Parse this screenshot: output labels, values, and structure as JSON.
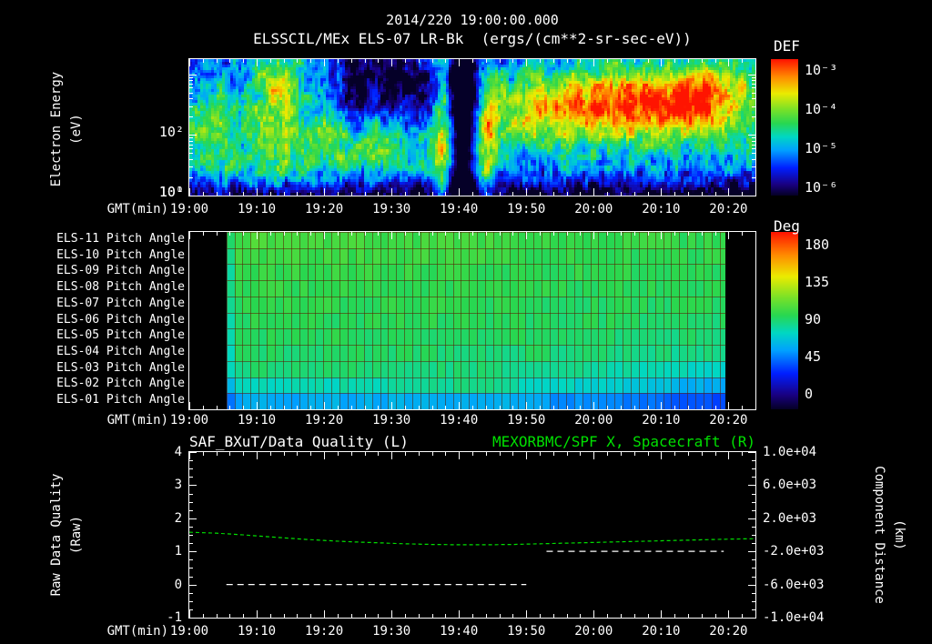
{
  "colors": {
    "background": "#000000",
    "text": "#ffffff",
    "title_green": "#00e000",
    "grid_red": "#5a1e00"
  },
  "header": {
    "timestamp": "2014/220 19:00:00.000"
  },
  "axis": {
    "x_label": "GMT(min)",
    "x_tick_labels": [
      "19:00",
      "19:10",
      "19:20",
      "19:30",
      "19:40",
      "19:50",
      "20:00",
      "20:10",
      "20:20"
    ],
    "x_tick_interval_min": 10,
    "x_range_min": [
      0,
      84
    ]
  },
  "chart_data": [
    {
      "id": "electron_energy_spectrogram",
      "type": "heatmap",
      "title": "ELSSCIL/MEx ELS-07 LR-Bk  (ergs/(cm**2-sr-sec-eV))",
      "ylabel": {
        "line1": "Electron Energy",
        "line2": "(eV)"
      },
      "y_scale": "log",
      "y_ticks": [
        "10²",
        "10¹",
        "10⁰"
      ],
      "y_tick_exponents": [
        2,
        1,
        0
      ],
      "y_range_log10_eV": [
        0,
        2.25
      ],
      "colorbar": {
        "label": "DEF",
        "ticks": [
          "10⁻³",
          "10⁻⁴",
          "10⁻⁵",
          "10⁻⁶"
        ],
        "tick_values_log10": [
          -3,
          -4,
          -5,
          -6
        ]
      },
      "base_log10": -5.5,
      "low_energy_cutoff_log10": 0.45,
      "features": [
        {
          "t": 3,
          "e": 1.1,
          "wt": 3.5,
          "we": 0.55,
          "a": 1.05
        },
        {
          "t": 13,
          "e": 1.2,
          "wt": 3,
          "we": 0.7,
          "a": 1.15
        },
        {
          "t": 13,
          "e": 1.9,
          "wt": 2.5,
          "we": 0.3,
          "a": 0.8
        },
        {
          "t": 22,
          "e": 1.0,
          "wt": 4,
          "we": 0.5,
          "a": 1.0
        },
        {
          "t": 30,
          "e": 0.85,
          "wt": 4,
          "we": 0.4,
          "a": 0.9
        },
        {
          "t": 31,
          "e": 1.75,
          "wt": 6,
          "we": 0.45,
          "a": -1.1
        },
        {
          "t": 24.5,
          "e": 1.6,
          "wt": 1.2,
          "we": 0.5,
          "a": -0.9
        },
        {
          "t": 37.5,
          "e": 1.0,
          "wt": 1.0,
          "we": 1.4,
          "a": 1.5
        },
        {
          "t": 40.8,
          "e": 1.2,
          "wt": 1.4,
          "we": 1.5,
          "a": -1.9
        },
        {
          "t": 44,
          "e": 0.8,
          "wt": 1.6,
          "we": 0.7,
          "a": 1.3
        },
        {
          "t": 44.5,
          "e": 1.6,
          "wt": 1.0,
          "we": 0.5,
          "a": 0.6
        },
        {
          "t": 50,
          "e": 1.45,
          "wt": 3,
          "we": 0.4,
          "a": 1.0
        },
        {
          "t": 58,
          "e": 1.5,
          "wt": 6,
          "we": 0.42,
          "a": 1.35
        },
        {
          "t": 68,
          "e": 1.55,
          "wt": 7,
          "we": 0.42,
          "a": 1.55
        },
        {
          "t": 78,
          "e": 1.6,
          "wt": 6,
          "we": 0.45,
          "a": 1.7
        },
        {
          "t": 64,
          "e": 0.9,
          "wt": 16,
          "we": 0.5,
          "a": 0.35
        },
        {
          "t": 10,
          "e": 0.35,
          "wt": 10,
          "we": 0.25,
          "a": 0.3
        }
      ]
    },
    {
      "id": "pitch_angle_panels",
      "type": "heatmap",
      "rows": [
        {
          "label": "ELS-11 Pitch Angle",
          "start_deg": 102,
          "mid_deg": 100,
          "end_deg": 96
        },
        {
          "label": "ELS-10 Pitch Angle",
          "start_deg": 100,
          "mid_deg": 98,
          "end_deg": 95
        },
        {
          "label": "ELS-09 Pitch Angle",
          "start_deg": 98,
          "mid_deg": 97,
          "end_deg": 94
        },
        {
          "label": "ELS-08 Pitch Angle",
          "start_deg": 97,
          "mid_deg": 96,
          "end_deg": 93
        },
        {
          "label": "ELS-07 Pitch Angle",
          "start_deg": 96,
          "mid_deg": 95,
          "end_deg": 92
        },
        {
          "label": "ELS-06 Pitch Angle",
          "start_deg": 95,
          "mid_deg": 94,
          "end_deg": 91
        },
        {
          "label": "ELS-05 Pitch Angle",
          "start_deg": 94,
          "mid_deg": 93,
          "end_deg": 89
        },
        {
          "label": "ELS-04 Pitch Angle",
          "start_deg": 92,
          "mid_deg": 91,
          "end_deg": 86
        },
        {
          "label": "ELS-03 Pitch Angle",
          "start_deg": 89,
          "mid_deg": 89,
          "end_deg": 78
        },
        {
          "label": "ELS-02 Pitch Angle",
          "start_deg": 76,
          "mid_deg": 86,
          "end_deg": 62
        },
        {
          "label": "ELS-01 Pitch Angle",
          "start_deg": 62,
          "mid_deg": 66,
          "end_deg": 42
        }
      ],
      "t_start_min": 5.5,
      "t_end_min": 79.5,
      "cell_min": 1.2,
      "colorbar": {
        "label": "Deg",
        "ticks": [
          "180",
          "135",
          "90",
          "45",
          "0"
        ],
        "range_deg": [
          0,
          180
        ]
      }
    },
    {
      "id": "quality_and_distance",
      "type": "line",
      "title_left": "SAF_BXuT/Data Quality (L)",
      "title_right": "MEXORBMC/SPF X, Spacecraft (R)",
      "ylabel_left": {
        "line1": "Raw Data Quality",
        "line2": "(Raw)"
      },
      "ylabel_right": {
        "line1": "Component Distance",
        "line2": "(km)"
      },
      "left_ticks": [
        "4",
        "3",
        "2",
        "1",
        "0",
        "-1"
      ],
      "left_range": [
        -1,
        4
      ],
      "right_ticks": [
        "1.0e+04",
        "6.0e+03",
        "2.0e+03",
        "-2.0e+03",
        "-6.0e+03",
        "-1.0e+04"
      ],
      "right_range": [
        -10000,
        10000
      ],
      "series": [
        {
          "name": "MEXORBMC/SPF X, Spacecraft",
          "axis": "right",
          "color": "#00dd00",
          "style": "dashed",
          "dash": [
            4,
            3
          ],
          "segments": [
            [
              [
                0,
                320
              ],
              [
                4,
                200
              ],
              [
                8,
                0
              ],
              [
                12,
                -240
              ],
              [
                16,
                -480
              ],
              [
                20,
                -680
              ],
              [
                24,
                -840
              ],
              [
                28,
                -960
              ],
              [
                32,
                -1080
              ],
              [
                36,
                -1160
              ],
              [
                40,
                -1200
              ],
              [
                44,
                -1200
              ],
              [
                48,
                -1160
              ],
              [
                52,
                -1080
              ],
              [
                56,
                -1000
              ],
              [
                60,
                -920
              ],
              [
                64,
                -840
              ],
              [
                68,
                -760
              ],
              [
                72,
                -680
              ],
              [
                76,
                -600
              ],
              [
                80,
                -520
              ],
              [
                84,
                -460
              ]
            ]
          ]
        },
        {
          "name": "SAF_BXuT/Data Quality",
          "axis": "left",
          "color": "#ffffff",
          "style": "dashed",
          "dash": [
            7,
            5
          ],
          "segments": [
            [
              [
                5.5,
                0
              ],
              [
                50,
                0
              ]
            ],
            [
              [
                53,
                1.0
              ],
              [
                79.3,
                1.0
              ]
            ]
          ]
        }
      ]
    }
  ]
}
